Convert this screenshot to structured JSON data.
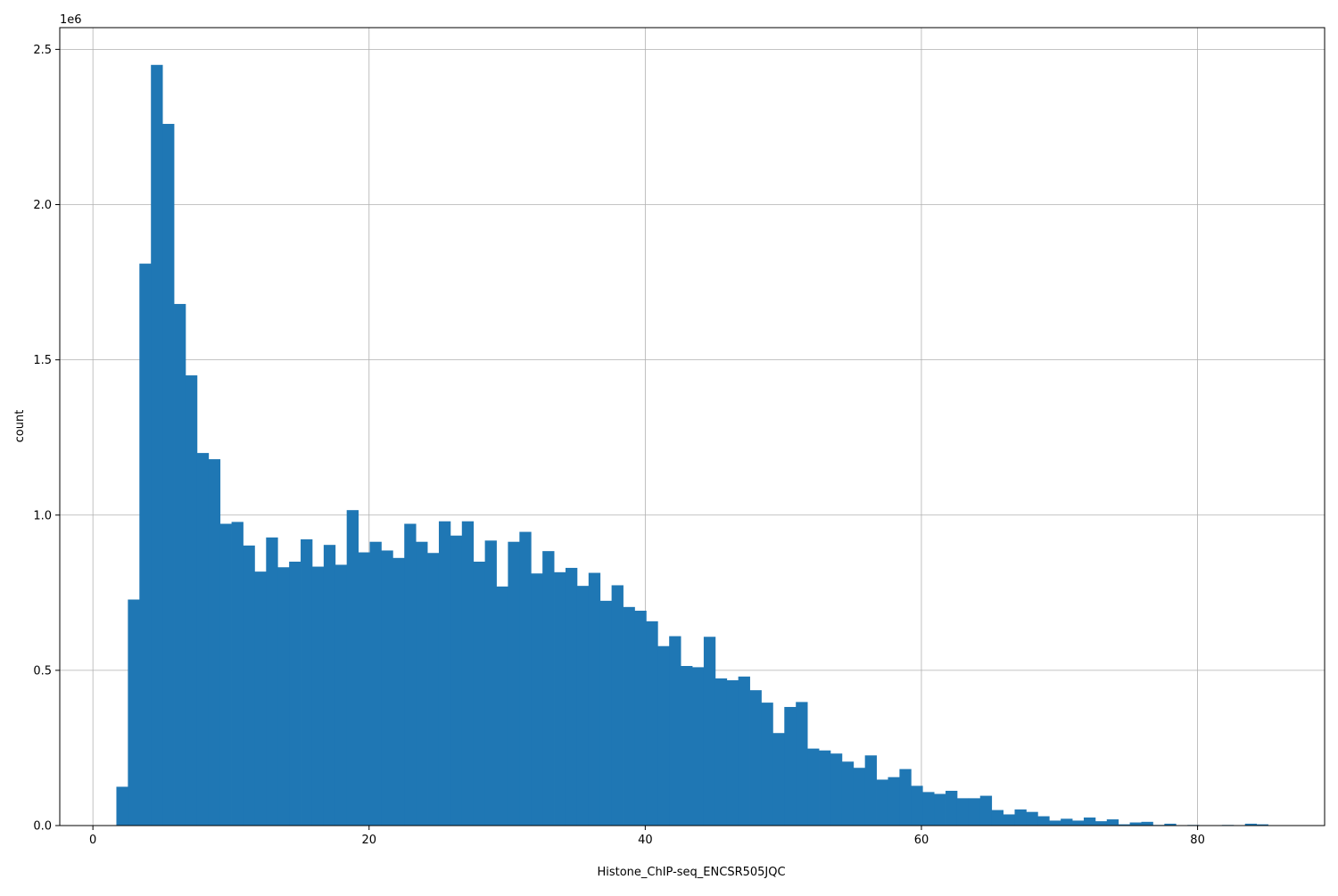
{
  "chart_data": {
    "type": "bar",
    "subtype": "histogram",
    "title": "",
    "xlabel": "Histone_ChIP-seq_ENCSR505JQC",
    "ylabel": "count",
    "y_offset_label": "1e6",
    "xlim": [
      -2.4,
      89.2
    ],
    "ylim": [
      0,
      2.57
    ],
    "x_ticks": [
      0,
      20,
      40,
      60,
      80
    ],
    "y_ticks": [
      0.0,
      0.5,
      1.0,
      1.5,
      2.0,
      2.5
    ],
    "x_tick_labels": [
      "0",
      "20",
      "40",
      "60",
      "80"
    ],
    "y_tick_labels": [
      "0.0",
      "0.5",
      "1.0",
      "1.5",
      "2.0",
      "2.5"
    ],
    "grid": true,
    "bar_color": "#1f77b4",
    "bin_start": 1.7,
    "bin_width": 0.834,
    "values": [
      0.125,
      0.728,
      1.81,
      2.45,
      2.26,
      1.68,
      1.45,
      1.2,
      1.18,
      0.972,
      0.978,
      0.902,
      0.818,
      0.928,
      0.832,
      0.85,
      0.922,
      0.834,
      0.904,
      0.84,
      1.016,
      0.88,
      0.914,
      0.886,
      0.862,
      0.972,
      0.914,
      0.878,
      0.98,
      0.934,
      0.98,
      0.85,
      0.918,
      0.77,
      0.914,
      0.946,
      0.812,
      0.884,
      0.816,
      0.83,
      0.772,
      0.814,
      0.724,
      0.774,
      0.704,
      0.692,
      0.658,
      0.578,
      0.61,
      0.514,
      0.51,
      0.608,
      0.474,
      0.468,
      0.48,
      0.436,
      0.396,
      0.298,
      0.382,
      0.398,
      0.248,
      0.242,
      0.232,
      0.206,
      0.186,
      0.226,
      0.148,
      0.156,
      0.182,
      0.128,
      0.108,
      0.102,
      0.112,
      0.088,
      0.088,
      0.096,
      0.05,
      0.036,
      0.052,
      0.044,
      0.03,
      0.016,
      0.022,
      0.016,
      0.026,
      0.014,
      0.02,
      0.004,
      0.01,
      0.012,
      0.002,
      0.006,
      0.0,
      0.002,
      0.0,
      0.0,
      0.002,
      0.0,
      0.006,
      0.004
    ]
  }
}
